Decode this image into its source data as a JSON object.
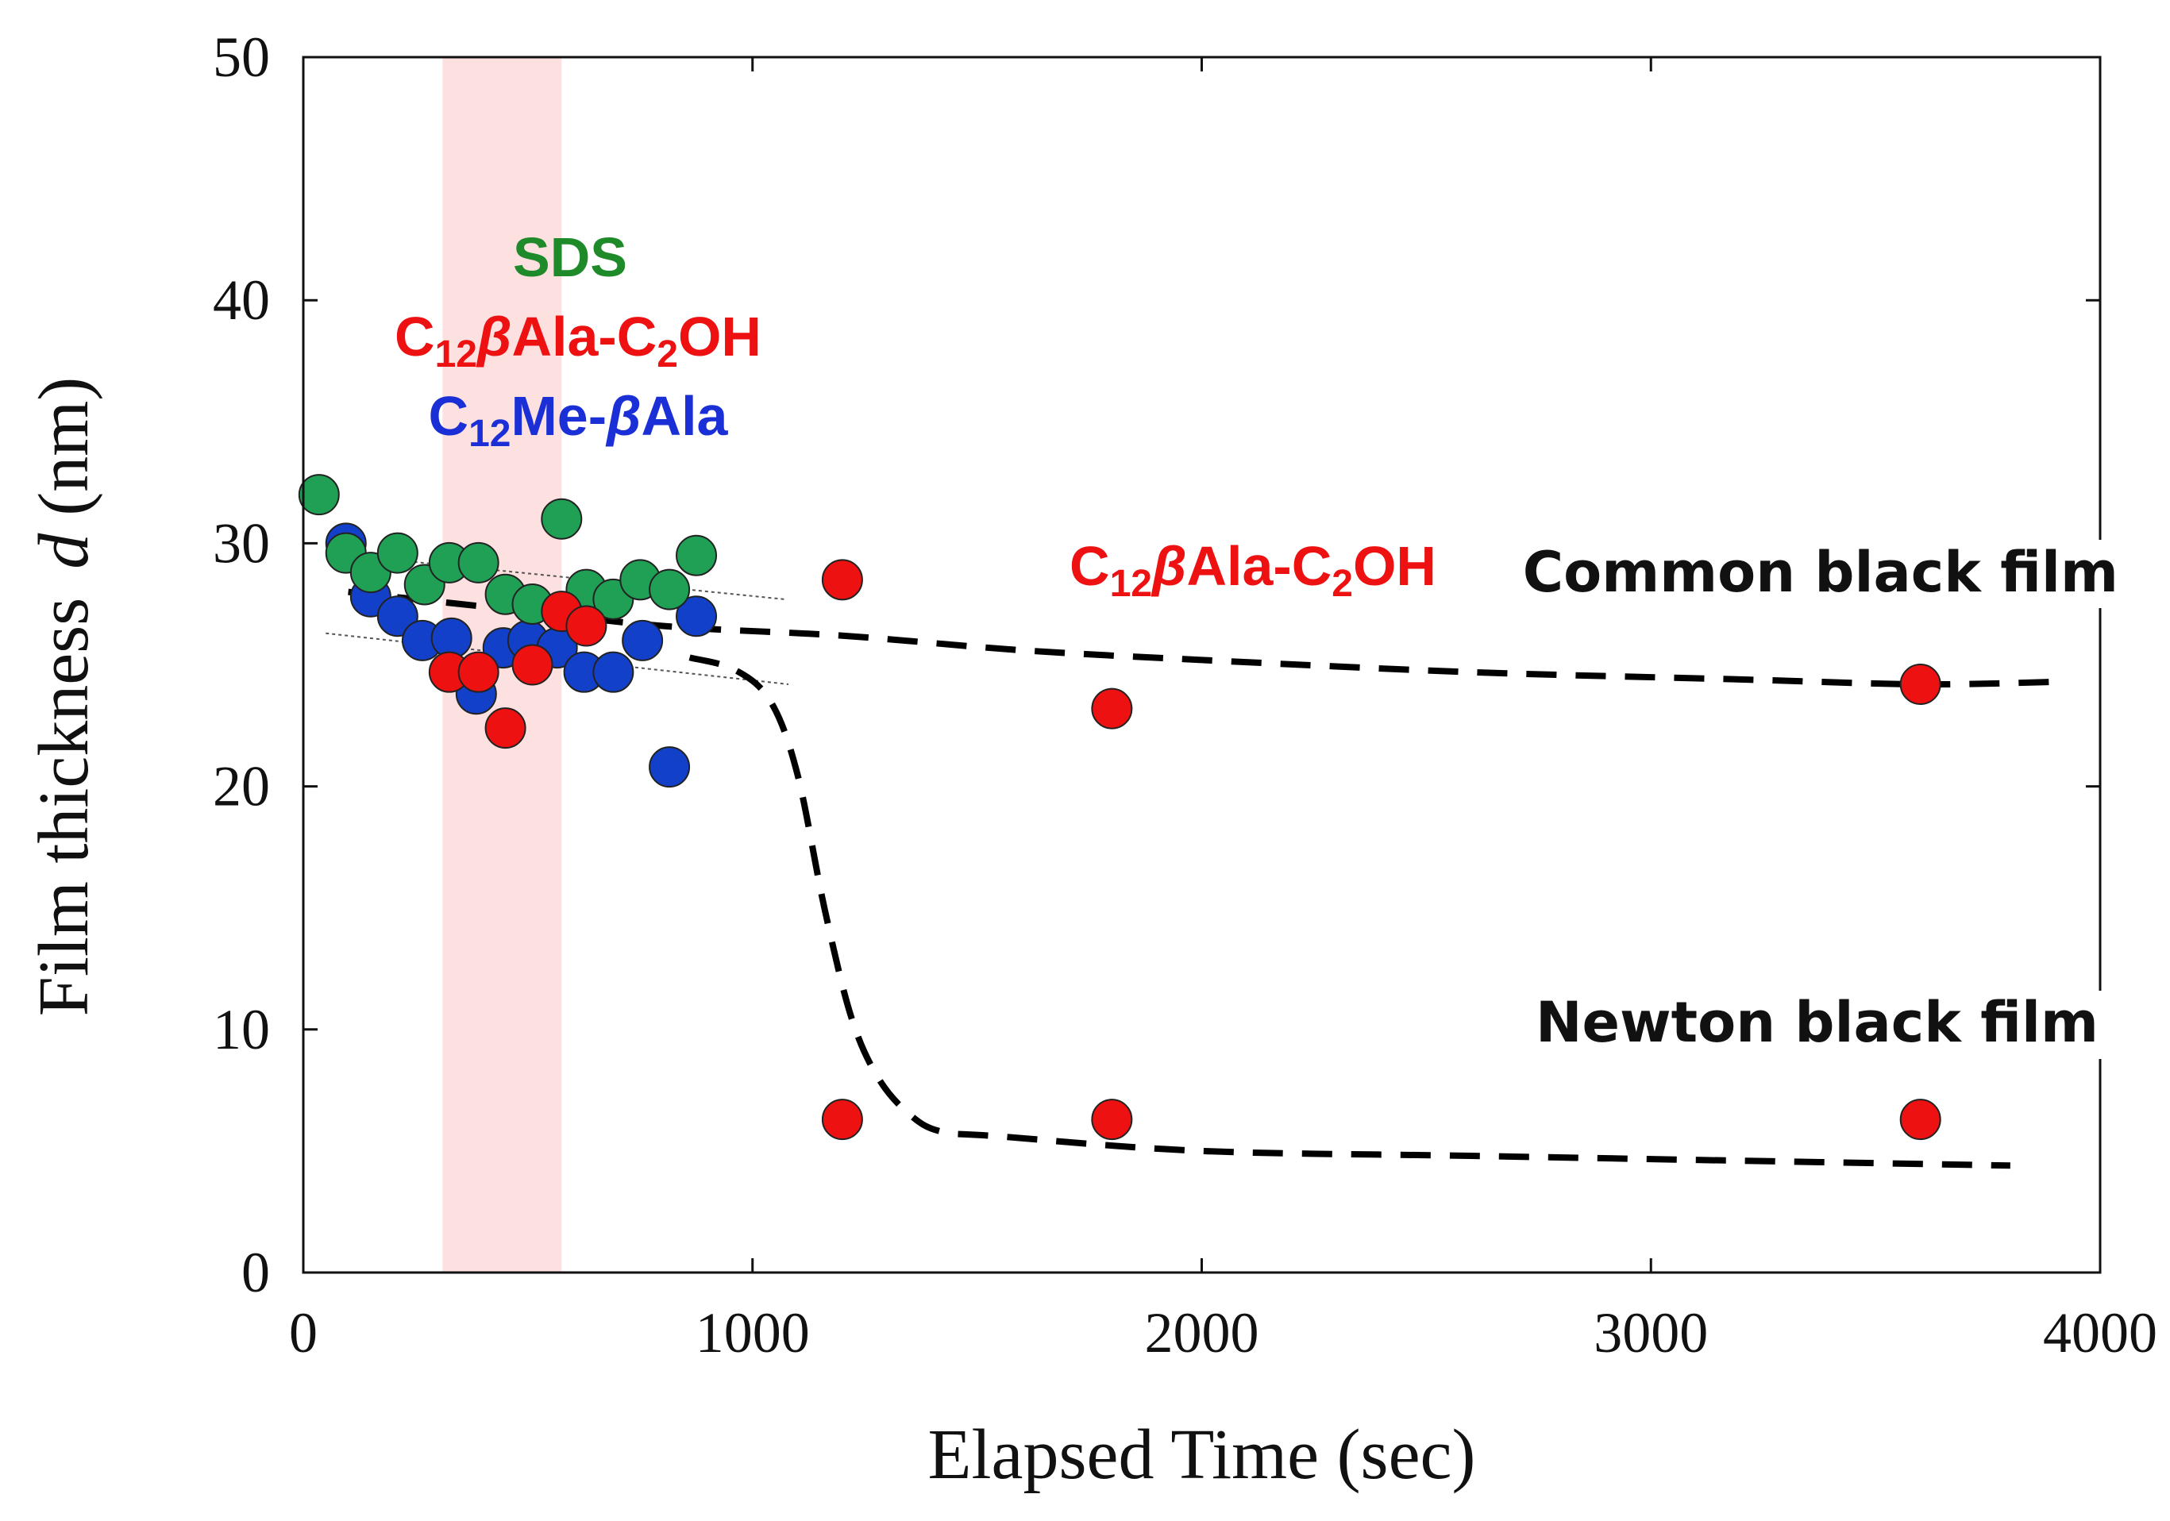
{
  "chart_data": {
    "type": "scatter",
    "title": "",
    "xlabel": "Elapsed Time (sec)",
    "ylabel_text": "Film thickness",
    "ylabel_symbol": "d",
    "ylabel_unit": "(nm)",
    "xlim": [
      0,
      4000
    ],
    "ylim": [
      0,
      50
    ],
    "x_ticks": [
      0,
      1000,
      2000,
      3000,
      4000
    ],
    "y_ticks": [
      0,
      10,
      20,
      30,
      40,
      50
    ],
    "grid": false,
    "highlight_band": {
      "x": [
        310,
        575
      ],
      "color": "#fde0e0"
    },
    "legend": [
      {
        "label": "SDS",
        "color": "#1f8a2a"
      },
      {
        "label_main": "C",
        "sub1": "12",
        "greek": "β",
        "mid": "Ala-C",
        "sub2": "2",
        "tail": "OH",
        "color": "#ee1111"
      },
      {
        "label_main": "C",
        "sub1": "12",
        "mid": "Me-",
        "greek": "β",
        "tail": "Ala",
        "color": "#1a2fd6"
      }
    ],
    "annotations": {
      "series_label": {
        "label_main": "C",
        "sub1": "12",
        "greek": "β",
        "mid": "Ala-C",
        "sub2": "2",
        "tail": "OH",
        "color": "#ee1111"
      },
      "common": "Common black film",
      "newton": "Newton black film"
    },
    "series": [
      {
        "name": "C12Me-βAla",
        "color": "#1340c8",
        "points": [
          [
            95,
            30.0
          ],
          [
            150,
            27.8
          ],
          [
            210,
            27.0
          ],
          [
            265,
            26.0
          ],
          [
            330,
            26.1
          ],
          [
            385,
            23.8
          ],
          [
            445,
            25.7
          ],
          [
            500,
            26.0
          ],
          [
            565,
            25.7
          ],
          [
            625,
            24.7
          ],
          [
            690,
            24.7
          ],
          [
            755,
            26.0
          ],
          [
            815,
            20.8
          ],
          [
            875,
            27.0
          ]
        ]
      },
      {
        "name": "SDS",
        "color": "#1fa055",
        "points": [
          [
            35,
            32.0
          ],
          [
            95,
            29.6
          ],
          [
            150,
            28.8
          ],
          [
            210,
            29.6
          ],
          [
            270,
            28.3
          ],
          [
            325,
            29.2
          ],
          [
            390,
            29.2
          ],
          [
            450,
            27.9
          ],
          [
            510,
            27.5
          ],
          [
            575,
            31.0
          ],
          [
            630,
            28.1
          ],
          [
            690,
            27.7
          ],
          [
            750,
            28.5
          ],
          [
            815,
            28.1
          ],
          [
            875,
            29.5
          ]
        ]
      },
      {
        "name": "C12βAla-C2OH",
        "color": "#ee1111",
        "points": [
          [
            325,
            24.7
          ],
          [
            390,
            24.7
          ],
          [
            450,
            22.4
          ],
          [
            510,
            25.0
          ],
          [
            575,
            27.2
          ],
          [
            630,
            26.6
          ],
          [
            1200,
            28.5
          ],
          [
            1200,
            6.3
          ],
          [
            1800,
            23.2
          ],
          [
            1800,
            6.3
          ],
          [
            3600,
            24.2
          ],
          [
            3600,
            6.3
          ]
        ]
      }
    ],
    "fit_lines": {
      "common": [
        [
          100,
          28.0
        ],
        [
          400,
          27.4
        ],
        [
          800,
          26.6
        ],
        [
          1200,
          26.2
        ],
        [
          1600,
          25.6
        ],
        [
          2000,
          25.2
        ],
        [
          2600,
          24.7
        ],
        [
          3200,
          24.4
        ],
        [
          3600,
          24.2
        ],
        [
          3900,
          24.3
        ]
      ],
      "newton": [
        [
          860,
          25.3
        ],
        [
          960,
          24.8
        ],
        [
          1040,
          23.5
        ],
        [
          1100,
          20.5
        ],
        [
          1160,
          15.0
        ],
        [
          1220,
          10.5
        ],
        [
          1280,
          8.0
        ],
        [
          1350,
          6.5
        ],
        [
          1420,
          5.8
        ],
        [
          1550,
          5.6
        ],
        [
          2000,
          5.0
        ],
        [
          2600,
          4.8
        ],
        [
          3200,
          4.6
        ],
        [
          3800,
          4.4
        ]
      ],
      "guide_upper": [
        [
          50,
          29.6
        ],
        [
          1070,
          27.7
        ]
      ],
      "guide_lower": [
        [
          50,
          26.3
        ],
        [
          1080,
          24.2
        ]
      ]
    }
  }
}
